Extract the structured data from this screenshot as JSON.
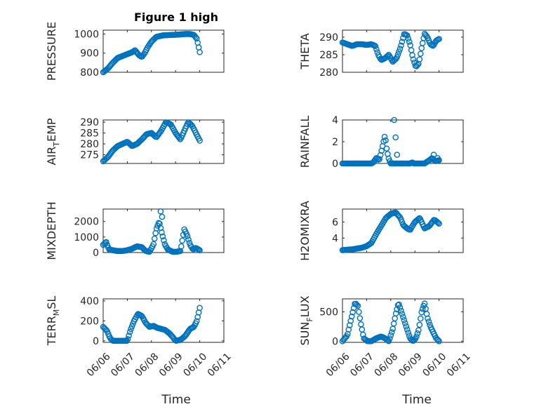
{
  "chart_data": {
    "type": "scatter",
    "title": "Figure 1 high",
    "xlabel": "Time",
    "marker_color": "#0072BD",
    "x_ticks": [
      "06/06",
      "06/07",
      "06/08",
      "06/09",
      "06/10",
      "06/11"
    ],
    "x_range": [
      "06/06",
      "06/11"
    ],
    "x_data_range": [
      "06/06 00:00",
      "06/10 00:00"
    ],
    "grid": "on",
    "panels": [
      {
        "ylabel": "PRESSURE",
        "ylim": [
          800,
          1020
        ],
        "yticks": [
          800,
          900,
          1000
        ],
        "y_anchors": [
          [
            0.0,
            800
          ],
          [
            0.05,
            820
          ],
          [
            0.1,
            850
          ],
          [
            0.15,
            875
          ],
          [
            0.2,
            885
          ],
          [
            0.25,
            895
          ],
          [
            0.3,
            905
          ],
          [
            0.33,
            915
          ],
          [
            0.37,
            890
          ],
          [
            0.4,
            880
          ],
          [
            0.43,
            900
          ],
          [
            0.46,
            930
          ],
          [
            0.5,
            960
          ],
          [
            0.55,
            985
          ],
          [
            0.62,
            993
          ],
          [
            0.7,
            995
          ],
          [
            0.78,
            997
          ],
          [
            0.85,
            1000
          ],
          [
            0.9,
            1000
          ],
          [
            0.94,
            995
          ],
          [
            0.97,
            975
          ],
          [
            1.0,
            905
          ]
        ]
      },
      {
        "ylabel": "THETA",
        "ylim": [
          280,
          292
        ],
        "yticks": [
          280,
          285,
          290
        ],
        "y_anchors": [
          [
            0.0,
            288.5
          ],
          [
            0.05,
            288
          ],
          [
            0.1,
            287.5
          ],
          [
            0.15,
            288
          ],
          [
            0.2,
            288
          ],
          [
            0.25,
            287.8
          ],
          [
            0.3,
            288
          ],
          [
            0.34,
            287.5
          ],
          [
            0.37,
            285
          ],
          [
            0.4,
            283.5
          ],
          [
            0.44,
            284
          ],
          [
            0.48,
            285
          ],
          [
            0.52,
            283
          ],
          [
            0.56,
            284
          ],
          [
            0.6,
            287
          ],
          [
            0.64,
            291
          ],
          [
            0.67,
            290.5
          ],
          [
            0.7,
            288
          ],
          [
            0.73,
            284
          ],
          [
            0.76,
            281.5
          ],
          [
            0.79,
            282.5
          ],
          [
            0.82,
            287
          ],
          [
            0.85,
            291
          ],
          [
            0.88,
            290
          ],
          [
            0.91,
            288
          ],
          [
            0.94,
            287.5
          ],
          [
            0.97,
            289
          ],
          [
            1.0,
            289.5
          ]
        ]
      },
      {
        "ylabel": "AIR_TEMP",
        "ylim": [
          271,
          291
        ],
        "yticks": [
          275,
          280,
          285,
          290
        ],
        "y_anchors": [
          [
            0.0,
            272
          ],
          [
            0.05,
            274
          ],
          [
            0.1,
            277
          ],
          [
            0.15,
            279
          ],
          [
            0.2,
            280
          ],
          [
            0.25,
            281
          ],
          [
            0.3,
            279
          ],
          [
            0.35,
            280
          ],
          [
            0.4,
            282
          ],
          [
            0.45,
            284.5
          ],
          [
            0.5,
            285
          ],
          [
            0.55,
            283
          ],
          [
            0.6,
            286
          ],
          [
            0.65,
            290
          ],
          [
            0.7,
            289
          ],
          [
            0.75,
            285
          ],
          [
            0.8,
            282
          ],
          [
            0.84,
            286
          ],
          [
            0.88,
            290
          ],
          [
            0.92,
            288.5
          ],
          [
            0.96,
            285
          ],
          [
            1.0,
            281.5
          ]
        ]
      },
      {
        "ylabel": "RAINFALL",
        "ylim": [
          0,
          4
        ],
        "yticks": [
          0,
          2,
          4
        ],
        "y_anchors": [
          [
            0.0,
            0
          ],
          [
            0.3,
            0
          ],
          [
            0.32,
            0.1
          ],
          [
            0.35,
            0.5
          ],
          [
            0.38,
            0.3
          ],
          [
            0.4,
            1.0
          ],
          [
            0.42,
            1.8
          ],
          [
            0.44,
            2.6
          ],
          [
            0.46,
            1.2
          ],
          [
            0.48,
            0.4
          ],
          [
            0.5,
            0
          ],
          [
            0.7,
            0
          ],
          [
            0.72,
            0.1
          ],
          [
            0.74,
            0
          ],
          [
            0.85,
            0
          ],
          [
            0.9,
            0.3
          ],
          [
            0.93,
            0.5
          ],
          [
            0.96,
            0.2
          ],
          [
            1.0,
            0.3
          ]
        ],
        "extra_points": [
          [
            0.535,
            4.0
          ],
          [
            0.55,
            2.4
          ],
          [
            0.565,
            0.8
          ],
          [
            0.945,
            0.8
          ],
          [
            0.985,
            0.5
          ]
        ]
      },
      {
        "ylabel": "MIXDEPTH",
        "ylim": [
          0,
          2800
        ],
        "yticks": [
          0,
          1000,
          2000
        ],
        "y_anchors": [
          [
            0.0,
            500
          ],
          [
            0.03,
            700
          ],
          [
            0.06,
            200
          ],
          [
            0.1,
            150
          ],
          [
            0.15,
            100
          ],
          [
            0.2,
            100
          ],
          [
            0.25,
            150
          ],
          [
            0.3,
            250
          ],
          [
            0.35,
            400
          ],
          [
            0.4,
            350
          ],
          [
            0.44,
            100
          ],
          [
            0.48,
            50
          ],
          [
            0.52,
            500
          ],
          [
            0.55,
            1500
          ],
          [
            0.58,
            2000
          ],
          [
            0.61,
            1200
          ],
          [
            0.64,
            500
          ],
          [
            0.67,
            200
          ],
          [
            0.72,
            50
          ],
          [
            0.76,
            50
          ],
          [
            0.8,
            100
          ],
          [
            0.82,
            800
          ],
          [
            0.84,
            1500
          ],
          [
            0.87,
            1100
          ],
          [
            0.9,
            500
          ],
          [
            0.93,
            200
          ],
          [
            0.96,
            300
          ],
          [
            1.0,
            150
          ]
        ],
        "extra_points": [
          [
            0.595,
            2650
          ],
          [
            0.61,
            2300
          ]
        ]
      },
      {
        "ylabel": "H2OMIXRA",
        "ylim": [
          2.2,
          7.6
        ],
        "yticks": [
          4,
          6
        ],
        "y_anchors": [
          [
            0.0,
            2.5
          ],
          [
            0.1,
            2.6
          ],
          [
            0.2,
            2.8
          ],
          [
            0.25,
            3.0
          ],
          [
            0.3,
            3.4
          ],
          [
            0.35,
            4.5
          ],
          [
            0.4,
            5.5
          ],
          [
            0.45,
            6.5
          ],
          [
            0.5,
            7.0
          ],
          [
            0.55,
            7.2
          ],
          [
            0.6,
            6.5
          ],
          [
            0.63,
            5.6
          ],
          [
            0.67,
            5.2
          ],
          [
            0.7,
            5.0
          ],
          [
            0.75,
            6.0
          ],
          [
            0.8,
            6.5
          ],
          [
            0.85,
            5.2
          ],
          [
            0.9,
            5.5
          ],
          [
            0.95,
            6.3
          ],
          [
            1.0,
            5.8
          ]
        ]
      },
      {
        "ylabel": "TERR_MSL",
        "ylim": [
          -15,
          420
        ],
        "yticks": [
          0,
          200,
          400
        ],
        "y_anchors": [
          [
            0.0,
            140
          ],
          [
            0.04,
            100
          ],
          [
            0.07,
            30
          ],
          [
            0.1,
            0
          ],
          [
            0.2,
            0
          ],
          [
            0.25,
            0
          ],
          [
            0.28,
            100
          ],
          [
            0.32,
            200
          ],
          [
            0.36,
            270
          ],
          [
            0.4,
            250
          ],
          [
            0.44,
            180
          ],
          [
            0.48,
            140
          ],
          [
            0.52,
            150
          ],
          [
            0.56,
            130
          ],
          [
            0.6,
            120
          ],
          [
            0.64,
            110
          ],
          [
            0.68,
            80
          ],
          [
            0.72,
            40
          ],
          [
            0.75,
            0
          ],
          [
            0.8,
            10
          ],
          [
            0.85,
            50
          ],
          [
            0.9,
            120
          ],
          [
            0.94,
            140
          ],
          [
            0.97,
            200
          ],
          [
            1.0,
            330
          ]
        ]
      },
      {
        "ylabel": "SUN_FLUX",
        "ylim": [
          -20,
          720
        ],
        "yticks": [
          0,
          500
        ],
        "y_anchors": [
          [
            0.0,
            0
          ],
          [
            0.05,
            100
          ],
          [
            0.1,
            450
          ],
          [
            0.13,
            650
          ],
          [
            0.16,
            600
          ],
          [
            0.19,
            300
          ],
          [
            0.22,
            50
          ],
          [
            0.26,
            0
          ],
          [
            0.3,
            0
          ],
          [
            0.35,
            50
          ],
          [
            0.4,
            80
          ],
          [
            0.44,
            50
          ],
          [
            0.48,
            0
          ],
          [
            0.52,
            200
          ],
          [
            0.55,
            450
          ],
          [
            0.58,
            650
          ],
          [
            0.61,
            500
          ],
          [
            0.64,
            350
          ],
          [
            0.67,
            200
          ],
          [
            0.7,
            50
          ],
          [
            0.73,
            0
          ],
          [
            0.76,
            50
          ],
          [
            0.79,
            200
          ],
          [
            0.82,
            500
          ],
          [
            0.85,
            650
          ],
          [
            0.88,
            400
          ],
          [
            0.91,
            250
          ],
          [
            0.94,
            150
          ],
          [
            0.97,
            50
          ],
          [
            1.0,
            0
          ]
        ]
      }
    ]
  }
}
